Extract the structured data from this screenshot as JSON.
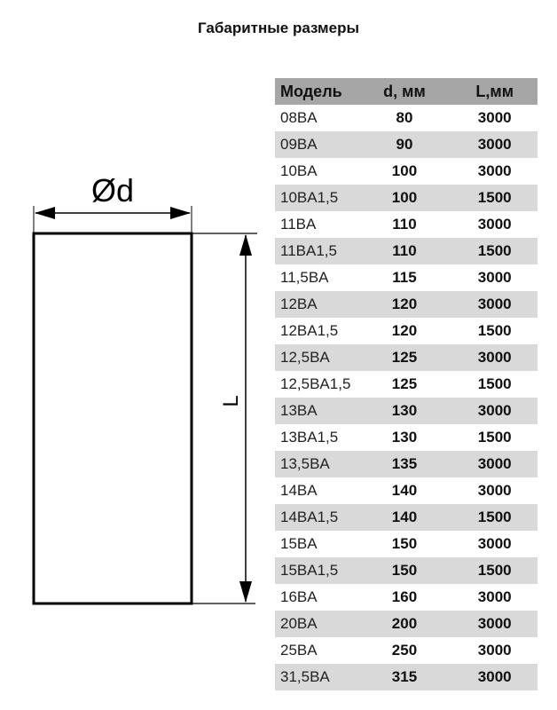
{
  "title": "Габаритные размеры",
  "drawing": {
    "diameter_label": "Ød",
    "length_label": "L"
  },
  "table": {
    "headers": [
      "Модель",
      "d, мм",
      "L,мм"
    ],
    "rows": [
      [
        "08BA",
        "80",
        "3000"
      ],
      [
        "09BA",
        "90",
        "3000"
      ],
      [
        "10BA",
        "100",
        "3000"
      ],
      [
        "10BA1,5",
        "100",
        "1500"
      ],
      [
        "11BA",
        "110",
        "3000"
      ],
      [
        "11BA1,5",
        "110",
        "1500"
      ],
      [
        "11,5BA",
        "115",
        "3000"
      ],
      [
        "12BA",
        "120",
        "3000"
      ],
      [
        "12BA1,5",
        "120",
        "1500"
      ],
      [
        "12,5BA",
        "125",
        "3000"
      ],
      [
        "12,5BA1,5",
        "125",
        "1500"
      ],
      [
        "13BA",
        "130",
        "3000"
      ],
      [
        "13BA1,5",
        "130",
        "1500"
      ],
      [
        "13,5BA",
        "135",
        "3000"
      ],
      [
        "14BA",
        "140",
        "3000"
      ],
      [
        "14BA1,5",
        "140",
        "1500"
      ],
      [
        "15BA",
        "150",
        "3000"
      ],
      [
        "15BA1,5",
        "150",
        "1500"
      ],
      [
        "16BA",
        "160",
        "3000"
      ],
      [
        "20BA",
        "200",
        "3000"
      ],
      [
        "25BA",
        "250",
        "3000"
      ],
      [
        "31,5BA",
        "315",
        "3000"
      ]
    ]
  }
}
